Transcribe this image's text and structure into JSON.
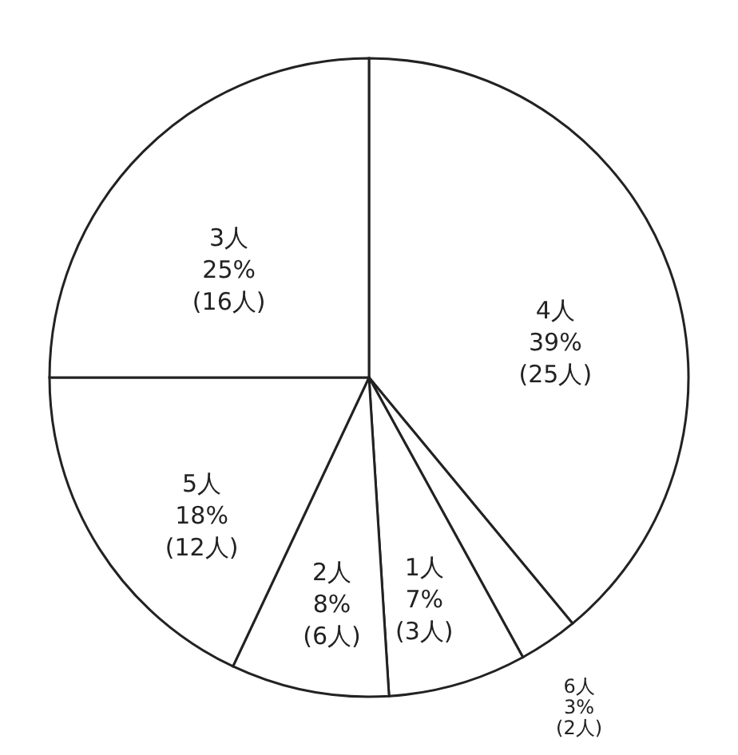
{
  "chart_data": {
    "type": "pie",
    "categories": [
      "4人",
      "6人",
      "1人",
      "2人",
      "5人",
      "3人"
    ],
    "values": [
      39,
      3,
      7,
      8,
      18,
      25
    ],
    "value_labels": [
      "39%\n(25人)",
      "3%\n(2人)",
      "7%\n(3人)",
      "8%\n(6人)",
      "18%\n(12人)",
      "25%\n(16人)"
    ],
    "colors": [
      "#ffffff",
      "#ffffff",
      "#ffffff",
      "#ffffff",
      "#ffffff",
      "#ffffff"
    ],
    "legend": false
  }
}
